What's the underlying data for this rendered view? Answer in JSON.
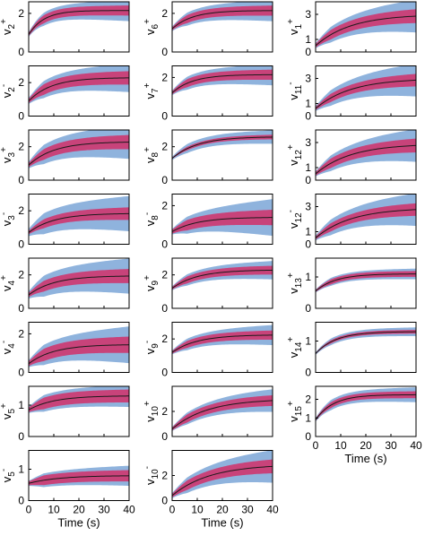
{
  "chart_data": {
    "type": "line",
    "x_axis_label": "Time (s)",
    "x_ticks": [
      0,
      10,
      20,
      30,
      40
    ],
    "xlim": [
      0,
      40
    ],
    "colors": {
      "outer_band": "#8fb3dd",
      "inner_band": "#c8437a",
      "mean_line": "#1a1a1a"
    },
    "legend": "none",
    "grid": false,
    "columns": [
      {
        "show_xlabel": true,
        "panels": [
          {
            "label": {
              "base": "v",
              "sub": "2",
              "sup": "+"
            },
            "ylim": [
              0,
              2.6
            ],
            "yticks": [
              0,
              2
            ],
            "start": 0.9,
            "end": 2.15,
            "tau": 6,
            "inner": 0.2,
            "outer": 0.3,
            "outer_grow": 0.25
          },
          {
            "label": {
              "base": "v",
              "sub": "2",
              "sup": "-"
            },
            "ylim": [
              0,
              3
            ],
            "yticks": [
              0,
              2
            ],
            "start": 0.9,
            "end": 2.3,
            "tau": 9,
            "inner": 0.3,
            "outer": 0.45,
            "outer_grow": 0.4
          },
          {
            "label": {
              "base": "v",
              "sub": "3",
              "sup": "+"
            },
            "ylim": [
              0,
              3
            ],
            "yticks": [
              0,
              2
            ],
            "start": 0.9,
            "end": 2.3,
            "tau": 10,
            "inner": 0.3,
            "outer": 0.5,
            "outer_grow": 0.5
          },
          {
            "label": {
              "base": "v",
              "sub": "3",
              "sup": "-"
            },
            "ylim": [
              0,
              3
            ],
            "yticks": [
              0,
              2
            ],
            "start": 0.7,
            "end": 1.85,
            "tau": 10,
            "inner": 0.25,
            "outer": 0.55,
            "outer_grow": 0.5
          },
          {
            "label": {
              "base": "v",
              "sub": "4",
              "sup": "+"
            },
            "ylim": [
              0,
              3
            ],
            "yticks": [
              0,
              2
            ],
            "start": 0.8,
            "end": 1.95,
            "tau": 10,
            "inner": 0.3,
            "outer": 0.55,
            "outer_grow": 0.5
          },
          {
            "label": {
              "base": "v",
              "sub": "4",
              "sup": "-"
            },
            "ylim": [
              0,
              2.6
            ],
            "yticks": [
              0,
              2
            ],
            "start": 0.45,
            "end": 1.45,
            "tau": 10,
            "inner": 0.3,
            "outer": 0.45,
            "outer_grow": 0.5
          },
          {
            "label": {
              "base": "v",
              "sub": "5",
              "sup": "+"
            },
            "ylim": [
              0,
              1.6
            ],
            "yticks": [
              0,
              1
            ],
            "start": 0.85,
            "end": 1.3,
            "tau": 10,
            "inner": 0.18,
            "outer": 0.25,
            "outer_grow": 0.1
          },
          {
            "label": {
              "base": "v",
              "sub": "5",
              "sup": "-"
            },
            "ylim": [
              0,
              1.6
            ],
            "yticks": [
              0,
              1
            ],
            "start": 0.55,
            "end": 0.8,
            "tau": 12,
            "inner": 0.15,
            "outer": 0.2,
            "outer_grow": 0.12
          }
        ]
      },
      {
        "show_xlabel": true,
        "panels": [
          {
            "label": {
              "base": "v",
              "sub": "6",
              "sup": "+"
            },
            "ylim": [
              0,
              2.6
            ],
            "yticks": [
              0,
              2
            ],
            "start": 1.2,
            "end": 2.15,
            "tau": 8,
            "inner": 0.2,
            "outer": 0.3,
            "outer_grow": 0.25
          },
          {
            "label": {
              "base": "v",
              "sub": "7",
              "sup": "+"
            },
            "ylim": [
              0,
              2.6
            ],
            "yticks": [
              0,
              2
            ],
            "start": 1.2,
            "end": 2.15,
            "tau": 8,
            "inner": 0.2,
            "outer": 0.3,
            "outer_grow": 0.25
          },
          {
            "label": {
              "base": "v",
              "sub": "8",
              "sup": "+"
            },
            "ylim": [
              0,
              3
            ],
            "yticks": [
              0,
              2
            ],
            "start": 1.3,
            "end": 2.6,
            "tau": 10,
            "inner": 0.1,
            "outer": 0.25,
            "outer_grow": 0.15
          },
          {
            "label": {
              "base": "v",
              "sub": "8",
              "sup": "-"
            },
            "ylim": [
              0,
              2.6
            ],
            "yticks": [
              0,
              2
            ],
            "start": 0.65,
            "end": 1.4,
            "tau": 10,
            "inner": 0.25,
            "outer": 0.35,
            "outer_grow": 0.6
          },
          {
            "label": {
              "base": "v",
              "sub": "9",
              "sup": "+"
            },
            "ylim": [
              0,
              3
            ],
            "yticks": [
              0,
              2
            ],
            "start": 1.2,
            "end": 2.3,
            "tau": 10,
            "inner": 0.2,
            "outer": 0.3,
            "outer_grow": 0.25
          },
          {
            "label": {
              "base": "v",
              "sub": "9",
              "sup": "-"
            },
            "ylim": [
              0,
              3
            ],
            "yticks": [
              0,
              2
            ],
            "start": 1.2,
            "end": 2.25,
            "tau": 10,
            "inner": 0.2,
            "outer": 0.3,
            "outer_grow": 0.3
          },
          {
            "label": {
              "base": "v",
              "sub": "10",
              "sup": "+"
            },
            "ylim": [
              0,
              4
            ],
            "yticks": [
              0,
              2
            ],
            "start": 0.6,
            "end": 3.0,
            "tau": 14,
            "inner": 0.3,
            "outer": 0.4,
            "outer_grow": 0.5
          },
          {
            "label": {
              "base": "v",
              "sub": "10",
              "sup": "-"
            },
            "ylim": [
              0,
              4
            ],
            "yticks": [
              0,
              2
            ],
            "start": 0.4,
            "end": 2.9,
            "tau": 15,
            "inner": 0.35,
            "outer": 0.5,
            "outer_grow": 0.8
          }
        ]
      },
      {
        "show_xlabel": true,
        "panels": [
          {
            "label": {
              "base": "v",
              "sub": "1",
              "sup": "+"
            },
            "ylim": [
              0,
              4
            ],
            "yticks": [
              0,
              1,
              3
            ],
            "start": 0.5,
            "end": 3.0,
            "tau": 14,
            "inner": 0.35,
            "outer": 0.5,
            "outer_grow": 0.8
          },
          {
            "label": {
              "base": "v",
              "sub": "11",
              "sup": "-"
            },
            "ylim": [
              0,
              4
            ],
            "yticks": [
              0,
              1,
              3
            ],
            "start": 0.6,
            "end": 3.0,
            "tau": 14,
            "inner": 0.3,
            "outer": 0.5,
            "outer_grow": 0.8
          },
          {
            "label": {
              "base": "v",
              "sub": "12",
              "sup": "+"
            },
            "ylim": [
              0,
              4
            ],
            "yticks": [
              0,
              1,
              3
            ],
            "start": 0.5,
            "end": 2.9,
            "tau": 14,
            "inner": 0.35,
            "outer": 0.5,
            "outer_grow": 0.8
          },
          {
            "label": {
              "base": "v",
              "sub": "12",
              "sup": "-"
            },
            "ylim": [
              0,
              4
            ],
            "yticks": [
              0,
              1,
              3
            ],
            "start": 0.5,
            "end": 2.9,
            "tau": 14,
            "inner": 0.3,
            "outer": 0.5,
            "outer_grow": 0.8
          },
          {
            "label": {
              "base": "v",
              "sub": "13",
              "sup": "+"
            },
            "ylim": [
              0,
              1.6
            ],
            "yticks": [
              0,
              1
            ],
            "start": 0.55,
            "end": 1.1,
            "tau": 8,
            "inner": 0.08,
            "outer": 0.12,
            "outer_grow": 0.05
          },
          {
            "label": {
              "base": "v",
              "sub": "14",
              "sup": "+"
            },
            "ylim": [
              0,
              1.6
            ],
            "yticks": [
              0,
              1
            ],
            "start": 0.6,
            "end": 1.3,
            "tau": 8,
            "inner": 0.05,
            "outer": 0.1,
            "outer_grow": 0.04
          },
          {
            "label": {
              "base": "v",
              "sub": "15",
              "sup": "+"
            },
            "ylim": [
              0,
              2.7
            ],
            "yticks": [
              0,
              1,
              2
            ],
            "start": 0.9,
            "end": 2.25,
            "tau": 7,
            "inner": 0.15,
            "outer": 0.25,
            "outer_grow": 0.15
          }
        ]
      }
    ]
  }
}
